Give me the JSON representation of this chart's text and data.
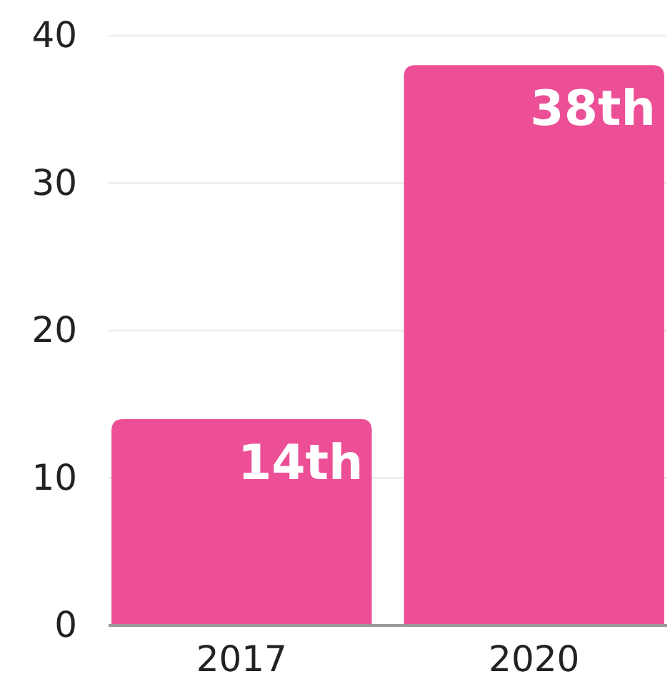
{
  "chart_data": {
    "type": "bar",
    "categories": [
      "2017",
      "2020"
    ],
    "values": [
      14,
      38
    ],
    "color": "#ec4f96",
    "value_labels": [
      "14th",
      "38th"
    ],
    "ylim": [
      0,
      40
    ],
    "yticks": [
      0,
      10,
      20,
      30,
      40
    ],
    "grid": "y"
  }
}
